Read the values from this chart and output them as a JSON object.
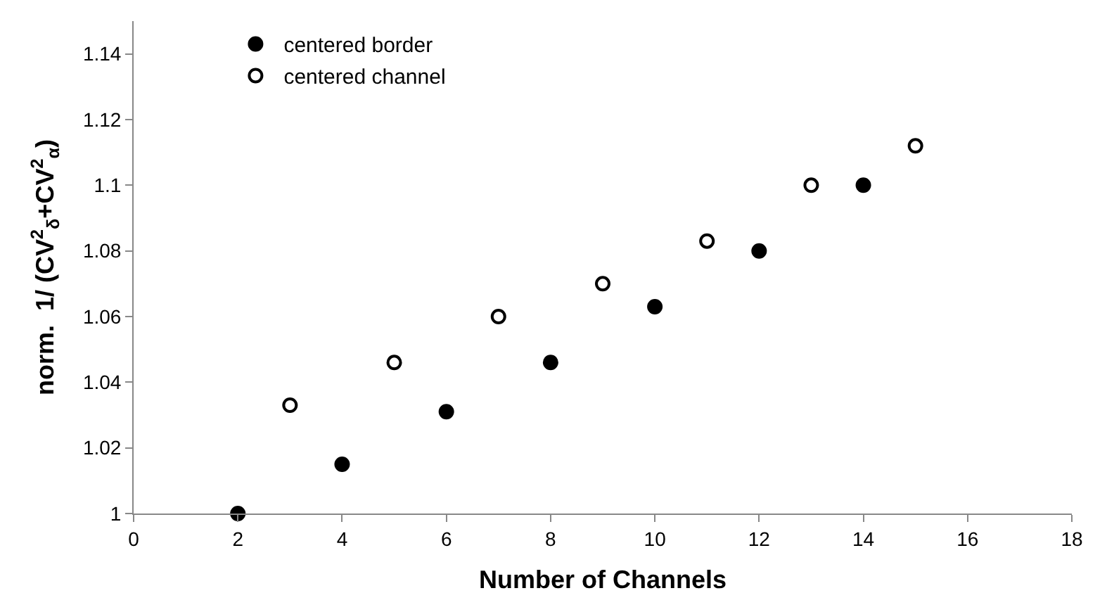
{
  "chart_data": {
    "type": "scatter",
    "xlabel": "Number of Channels",
    "ylabel": "norm.  1/ (CV$^{2}$$_{δ}$+CV$^{2}$$_{α}$)",
    "series": [
      {
        "name": "centered border",
        "color": "#000000",
        "x": [
          2,
          4,
          6,
          8,
          10,
          12,
          14
        ],
        "values": [
          1.0,
          1.015,
          1.031,
          1.046,
          1.063,
          1.08,
          1.1
        ]
      },
      {
        "name": "centered channel",
        "color": "#ffffff",
        "x": [
          3,
          5,
          7,
          9,
          11,
          13,
          15
        ],
        "values": [
          1.033,
          1.046,
          1.06,
          1.07,
          1.083,
          1.1,
          1.112
        ]
      }
    ],
    "xlim": [
      0,
      18
    ],
    "xticks": [
      0,
      2,
      4,
      6,
      8,
      10,
      12,
      14,
      16,
      18
    ],
    "ylim": [
      1,
      1.15
    ],
    "yticks": [
      1,
      1.02,
      1.04,
      1.06,
      1.08,
      1.1,
      1.12,
      1.14
    ],
    "legend": "top left",
    "marker": "circle"
  }
}
